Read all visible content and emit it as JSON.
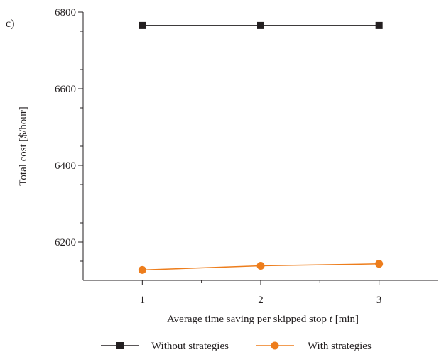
{
  "panel_label": "c)",
  "colors": {
    "axis": "#231f20",
    "without": "#231f20",
    "with": "#ed7d1c"
  },
  "chart_data": {
    "type": "line",
    "title": "",
    "xlabel": "Average time saving per skipped stop",
    "xlabel_symbol": "t",
    "xlabel_unit": "[min]",
    "ylabel": "Total cost [$/hour]",
    "x": [
      1,
      2,
      3
    ],
    "xticks": [
      "1",
      "2",
      "3"
    ],
    "yticks": [
      "6200",
      "6400",
      "6600",
      "6800"
    ],
    "xlim": [
      0.5,
      3.5
    ],
    "ylim": [
      6100,
      6800
    ],
    "grid": false,
    "legend_position": "bottom",
    "series": [
      {
        "name": "Without strategies",
        "marker": "square",
        "color": "#231f20",
        "values": [
          6765,
          6765,
          6765
        ]
      },
      {
        "name": "With strategies",
        "marker": "circle",
        "color": "#ed7d1c",
        "values": [
          6127,
          6138,
          6143
        ]
      }
    ]
  }
}
